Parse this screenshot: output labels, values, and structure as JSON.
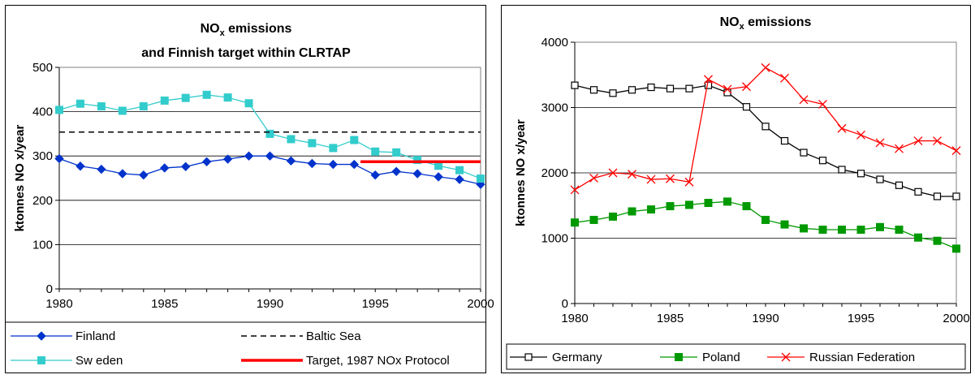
{
  "chart_data": [
    {
      "type": "line",
      "title_line1_main": "NO",
      "title_line1_sub": "x",
      "title_line1_rest": " emissions",
      "title_line2": "and Finnish target within CLRTAP",
      "ylabel": "ktonnes NO x/year",
      "xlabel": "",
      "xlim": [
        1980,
        2000
      ],
      "ylim": [
        0,
        500
      ],
      "x_ticks": [
        1980,
        1985,
        1990,
        1995,
        2000
      ],
      "y_ticks": [
        0,
        100,
        200,
        300,
        400,
        500
      ],
      "grid": true,
      "legend_position": "bottom",
      "series": [
        {
          "name": "Finland",
          "color": "#0033cc",
          "marker": "diamond",
          "x": [
            1980,
            1981,
            1982,
            1983,
            1984,
            1985,
            1986,
            1987,
            1988,
            1989,
            1990,
            1991,
            1992,
            1993,
            1994,
            1995,
            1996,
            1997,
            1998,
            1999,
            2000
          ],
          "values": [
            294,
            277,
            270,
            260,
            257,
            273,
            276,
            287,
            293,
            300,
            300,
            289,
            283,
            281,
            281,
            257,
            265,
            260,
            253,
            247,
            236
          ]
        },
        {
          "name": "Sw eden",
          "color": "#33cccc",
          "marker": "square",
          "x": [
            1980,
            1981,
            1982,
            1983,
            1984,
            1985,
            1986,
            1987,
            1988,
            1989,
            1990,
            1991,
            1992,
            1993,
            1994,
            1995,
            1996,
            1997,
            1998,
            1999,
            2000
          ],
          "values": [
            404,
            418,
            412,
            402,
            412,
            425,
            431,
            438,
            432,
            419,
            350,
            338,
            329,
            318,
            336,
            310,
            308,
            291,
            278,
            268,
            249
          ]
        },
        {
          "name": "Baltic Sea",
          "color": "#000000",
          "style": "dashed",
          "x": [
            1980,
            2000
          ],
          "values": [
            354,
            354
          ]
        },
        {
          "name": "Target, 1987 NOx Protocol",
          "color": "#ff0000",
          "style": "thick",
          "x": [
            1994.3,
            2000
          ],
          "values": [
            287,
            287
          ]
        }
      ]
    },
    {
      "type": "line",
      "title_main": "NO",
      "title_sub": "x",
      "title_rest": " emissions",
      "ylabel": "ktonnes NO x/year",
      "xlabel": "",
      "xlim": [
        1980,
        2000
      ],
      "ylim": [
        0,
        4000
      ],
      "x_ticks": [
        1980,
        1985,
        1990,
        1995,
        2000
      ],
      "y_ticks": [
        0,
        1000,
        2000,
        3000,
        4000
      ],
      "grid": true,
      "legend_position": "bottom",
      "series": [
        {
          "name": "Germany",
          "color": "#000000",
          "marker": "open-square",
          "x": [
            1980,
            1981,
            1982,
            1983,
            1984,
            1985,
            1986,
            1987,
            1988,
            1989,
            1990,
            1991,
            1992,
            1993,
            1994,
            1995,
            1996,
            1997,
            1998,
            1999,
            2000
          ],
          "values": [
            3340,
            3270,
            3220,
            3270,
            3310,
            3290,
            3290,
            3340,
            3230,
            3010,
            2710,
            2490,
            2310,
            2190,
            2050,
            1990,
            1900,
            1810,
            1710,
            1640,
            1640
          ]
        },
        {
          "name": "Poland",
          "color": "#009900",
          "marker": "filled-square",
          "x": [
            1980,
            1981,
            1982,
            1983,
            1984,
            1985,
            1986,
            1987,
            1988,
            1989,
            1990,
            1991,
            1992,
            1993,
            1994,
            1995,
            1996,
            1997,
            1998,
            1999,
            2000
          ],
          "values": [
            1240,
            1280,
            1330,
            1410,
            1440,
            1490,
            1510,
            1540,
            1560,
            1490,
            1280,
            1210,
            1150,
            1130,
            1130,
            1130,
            1170,
            1130,
            1010,
            960,
            840
          ]
        },
        {
          "name": "Russian Federation",
          "color": "#ff0000",
          "marker": "x",
          "x": [
            1980,
            1981,
            1982,
            1983,
            1984,
            1985,
            1986,
            1987,
            1988,
            1989,
            1990,
            1991,
            1992,
            1993,
            1994,
            1995,
            1996,
            1997,
            1998,
            1999,
            2000
          ],
          "values": [
            1740,
            1920,
            2000,
            1980,
            1900,
            1910,
            1860,
            3430,
            3280,
            3320,
            3610,
            3450,
            3120,
            3050,
            2680,
            2580,
            2460,
            2370,
            2490,
            2490,
            2340
          ]
        }
      ]
    }
  ]
}
